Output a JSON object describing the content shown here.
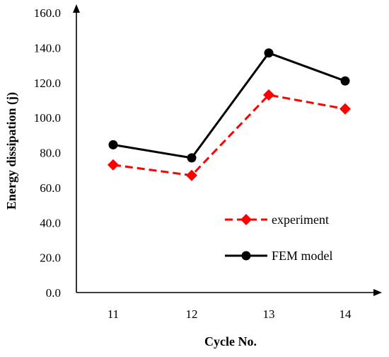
{
  "chart_data": {
    "type": "line",
    "title": "",
    "xlabel": "Cycle No.",
    "ylabel": "Energy dissipation (j)",
    "categories": [
      "11",
      "12",
      "13",
      "14"
    ],
    "ylim": [
      0,
      160
    ],
    "yticks": [
      "0.0",
      "20.0",
      "40.0",
      "60.0",
      "80.0",
      "100.0",
      "120.0",
      "140.0",
      "160.0"
    ],
    "grid": false,
    "legend_position": "bottom-right",
    "series": [
      {
        "name": "experiment",
        "values": [
          73,
          67,
          113,
          105
        ],
        "color": "#ff0000",
        "line_style": "dashed",
        "marker": "diamond"
      },
      {
        "name": "FEM model",
        "values": [
          84.5,
          77,
          137,
          121
        ],
        "color": "#000000",
        "line_style": "solid",
        "marker": "circle"
      }
    ]
  }
}
